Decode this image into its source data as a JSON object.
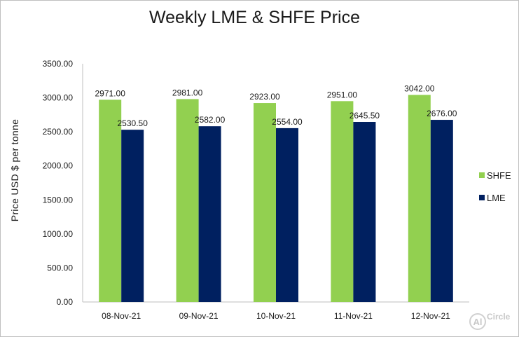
{
  "chart_data": {
    "type": "bar",
    "title": "Weekly LME & SHFE Price",
    "xlabel": "",
    "ylabel": "Price  USD  $  per  tonne",
    "categories": [
      "08-Nov-21",
      "09-Nov-21",
      "10-Nov-21",
      "11-Nov-21",
      "12-Nov-21"
    ],
    "series": [
      {
        "name": "SHFE",
        "color": "#92d050",
        "values": [
          2971.0,
          2981.0,
          2923.0,
          2951.0,
          3042.0
        ],
        "labels": [
          "2971.00",
          "2981.00",
          "2923.00",
          "2951.00",
          "3042.00"
        ]
      },
      {
        "name": "LME",
        "color": "#002060",
        "values": [
          2530.5,
          2582.0,
          2554.0,
          2645.5,
          2676.0
        ],
        "labels": [
          "2530.50",
          "2582.00",
          "2554.00",
          "2645.50",
          "2676.00"
        ]
      }
    ],
    "ylim": [
      0,
      3500
    ],
    "yticks": [
      "0.00",
      "500.00",
      "1000.00",
      "1500.00",
      "2000.00",
      "2500.00",
      "3000.00",
      "3500.00"
    ],
    "grid": false,
    "legend_position": "right"
  },
  "watermark": {
    "text": "Circle",
    "badge": "Al"
  }
}
